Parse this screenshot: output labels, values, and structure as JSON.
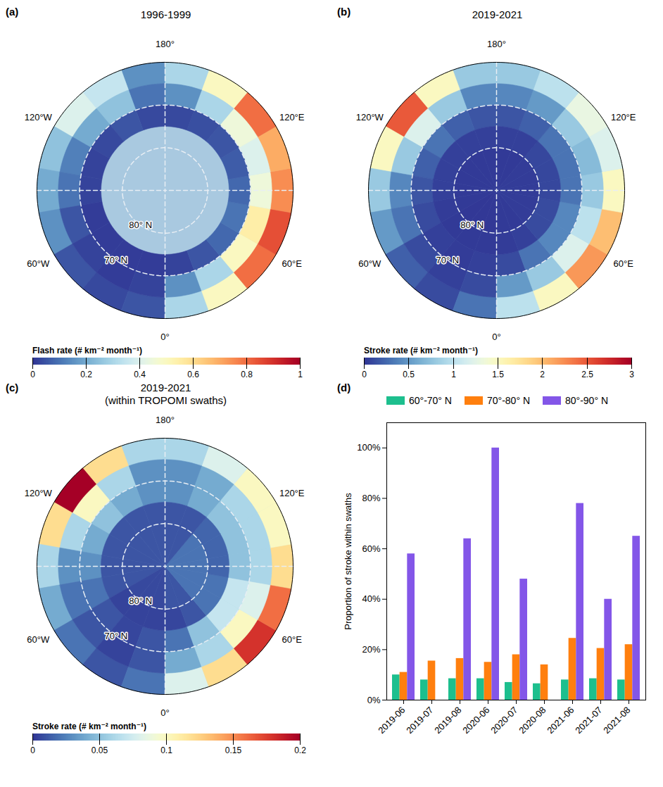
{
  "chart_data": [
    {
      "type": "map",
      "panel": "(a)",
      "title": "1996-1999",
      "lat_bands": [
        60,
        65,
        70,
        75,
        80,
        90
      ],
      "lon_edges": [
        -180,
        -160,
        -140,
        -120,
        -100,
        -80,
        -60,
        -40,
        -20,
        0,
        20,
        40,
        60,
        80,
        100,
        120,
        140,
        160,
        180
      ],
      "cells": [
        [
          0.15,
          0.1,
          0.03,
          null,
          null
        ],
        [
          0.35,
          0.25,
          0.05,
          null,
          null
        ],
        [
          0.4,
          0.2,
          0.03,
          null,
          null
        ],
        [
          0.25,
          0.12,
          0.02,
          null,
          null
        ],
        [
          0.2,
          0.1,
          0.02,
          null,
          null
        ],
        [
          0.15,
          0.05,
          0.01,
          null,
          null
        ],
        [
          0.05,
          0.02,
          0.01,
          null,
          null
        ],
        [
          0.03,
          0.01,
          0.01,
          null,
          null
        ],
        [
          0.05,
          0.02,
          0.01,
          null,
          null
        ],
        [
          0.3,
          0.15,
          0.02,
          null,
          null
        ],
        [
          0.5,
          0.3,
          0.05,
          null,
          null
        ],
        [
          0.8,
          0.5,
          0.08,
          null,
          null
        ],
        [
          0.85,
          0.55,
          0.1,
          null,
          null
        ],
        [
          0.75,
          0.45,
          0.08,
          null,
          null
        ],
        [
          0.7,
          0.4,
          0.06,
          null,
          null
        ],
        [
          0.8,
          0.45,
          0.05,
          null,
          null
        ],
        [
          0.5,
          0.3,
          0.04,
          null,
          null
        ],
        [
          0.3,
          0.15,
          0.03,
          null,
          null
        ]
      ],
      "colorbar": {
        "label": "Flash rate (# km⁻² month⁻¹)",
        "range": [
          0,
          1
        ],
        "ticks": [
          0,
          0.2,
          0.4,
          0.6,
          0.8,
          1
        ]
      },
      "lon_labels": [
        {
          "value": 180,
          "label": "180°"
        },
        {
          "value": 120,
          "label": "120°E"
        },
        {
          "value": 60,
          "label": "60°E"
        },
        {
          "value": 0,
          "label": "0°"
        },
        {
          "value": -60,
          "label": "60°W"
        },
        {
          "value": -120,
          "label": "120°W"
        }
      ],
      "lat_labels": [
        {
          "value": 80,
          "label": "80° N"
        },
        {
          "value": 70,
          "label": "70° N"
        }
      ],
      "meridians": [
        -90,
        0,
        90,
        180
      ]
    },
    {
      "type": "map",
      "panel": "(b)",
      "title": "2019-2021",
      "lat_bands": [
        60,
        65,
        70,
        75,
        80,
        90
      ],
      "lon_edges": [
        -180,
        -160,
        -140,
        -120,
        -100,
        -80,
        -60,
        -40,
        -20,
        0,
        20,
        40,
        60,
        80,
        100,
        120,
        140,
        160,
        180
      ],
      "cells": [
        [
          0.8,
          0.4,
          0.15,
          0.05,
          0.02
        ],
        [
          1.5,
          0.8,
          0.2,
          0.05,
          0.02
        ],
        [
          2.5,
          1.2,
          0.3,
          0.05,
          0.02
        ],
        [
          1.5,
          0.8,
          0.2,
          0.05,
          0.02
        ],
        [
          0.8,
          0.4,
          0.15,
          0.05,
          0.02
        ],
        [
          0.5,
          0.3,
          0.1,
          0.03,
          0.02
        ],
        [
          0.2,
          0.1,
          0.05,
          0.02,
          0.01
        ],
        [
          0.1,
          0.05,
          0.03,
          0.02,
          0.01
        ],
        [
          0.3,
          0.1,
          0.05,
          0.02,
          0.01
        ],
        [
          1.0,
          0.5,
          0.1,
          0.03,
          0.02
        ],
        [
          1.5,
          0.8,
          0.3,
          0.05,
          0.02
        ],
        [
          2.2,
          1.2,
          0.4,
          0.1,
          0.03
        ],
        [
          2.0,
          1.0,
          0.4,
          0.1,
          0.03
        ],
        [
          1.5,
          0.8,
          0.3,
          0.08,
          0.03
        ],
        [
          1.2,
          0.7,
          0.3,
          0.08,
          0.03
        ],
        [
          1.3,
          0.8,
          0.3,
          0.08,
          0.03
        ],
        [
          1.0,
          0.5,
          0.2,
          0.05,
          0.02
        ],
        [
          0.8,
          0.4,
          0.15,
          0.05,
          0.02
        ]
      ],
      "colorbar": {
        "label": "Stroke rate (# km⁻² month⁻¹)",
        "range": [
          0,
          3
        ],
        "ticks": [
          0,
          0.5,
          1,
          1.5,
          2,
          2.5,
          3
        ]
      },
      "lon_labels": [
        {
          "value": 180,
          "label": "180°"
        },
        {
          "value": 120,
          "label": "120°E"
        },
        {
          "value": 60,
          "label": "60°E"
        },
        {
          "value": 0,
          "label": "0°"
        },
        {
          "value": -60,
          "label": "60°W"
        },
        {
          "value": -120,
          "label": "120°W"
        }
      ],
      "lat_labels": [
        {
          "value": 80,
          "label": "80° N"
        },
        {
          "value": 70,
          "label": "70° N"
        }
      ],
      "meridians": [
        -90,
        0,
        90,
        180
      ]
    },
    {
      "type": "map",
      "panel": "(c)",
      "title": "2019-2021",
      "subtitle": "(within TROPOMI swaths)",
      "lat_bands": [
        60,
        65,
        70,
        75,
        80,
        90
      ],
      "lon_edges": [
        -180,
        -160,
        -140,
        -120,
        -100,
        -80,
        -60,
        -40,
        -20,
        0,
        20,
        40,
        60,
        80,
        100,
        120,
        140,
        160,
        180
      ],
      "cells": [
        [
          0.06,
          0.03,
          0.03,
          0.01,
          0.01
        ],
        [
          0.12,
          0.06,
          0.04,
          0.01,
          0.01
        ],
        [
          0.2,
          0.1,
          0.05,
          0.01,
          0.01
        ],
        [
          0.12,
          0.06,
          0.04,
          0.01,
          0.01
        ],
        [
          0.06,
          0.03,
          0.03,
          0.01,
          0.01
        ],
        [
          0.04,
          0.02,
          0.02,
          0.01,
          0.01
        ],
        [
          0.02,
          0.01,
          0.01,
          0.004,
          0.006
        ],
        [
          0.01,
          0.004,
          0.005,
          0.004,
          0.006
        ],
        [
          0.02,
          0.01,
          0.01,
          0.004,
          0.006
        ],
        [
          0.08,
          0.04,
          0.02,
          0.005,
          0.01
        ],
        [
          0.12,
          0.06,
          0.05,
          0.01,
          0.01
        ],
        [
          0.18,
          0.1,
          0.07,
          0.02,
          0.02
        ],
        [
          0.16,
          0.08,
          0.07,
          0.02,
          0.02
        ],
        [
          0.12,
          0.06,
          0.05,
          0.015,
          0.02
        ],
        [
          0.1,
          0.06,
          0.05,
          0.015,
          0.02
        ],
        [
          0.1,
          0.06,
          0.05,
          0.015,
          0.02
        ],
        [
          0.08,
          0.04,
          0.04,
          0.01,
          0.01
        ],
        [
          0.06,
          0.03,
          0.03,
          0.01,
          0.01
        ]
      ],
      "colorbar": {
        "label": "Stroke rate (# km⁻² month⁻¹)",
        "range": [
          0,
          0.2
        ],
        "ticks": [
          0,
          0.05,
          0.1,
          0.15,
          0.2
        ]
      },
      "lon_labels": [
        {
          "value": 180,
          "label": "180°"
        },
        {
          "value": 120,
          "label": "120°E"
        },
        {
          "value": 60,
          "label": "60°E"
        },
        {
          "value": 0,
          "label": "0°"
        },
        {
          "value": -60,
          "label": "60°W"
        },
        {
          "value": -120,
          "label": "120°W"
        }
      ],
      "lat_labels": [
        {
          "value": 80,
          "label": "80° N"
        },
        {
          "value": 70,
          "label": "70° N"
        }
      ],
      "meridians": [
        -90,
        0,
        90,
        180
      ]
    },
    {
      "type": "bar",
      "panel": "(d)",
      "categories": [
        "2019-06",
        "2019-07",
        "2019-08",
        "2020-06",
        "2020-07",
        "2020-08",
        "2021-06",
        "2021-07",
        "2021-08"
      ],
      "series": [
        {
          "name": "60°-70° N",
          "color": "#1dbf8e",
          "values": [
            10,
            8,
            8.5,
            8.5,
            7,
            6.5,
            8,
            8.5,
            8
          ]
        },
        {
          "name": "70°-80° N",
          "color": "#ff7f0e",
          "values": [
            11,
            15.5,
            16.5,
            15,
            18,
            14,
            24.5,
            20.5,
            22
          ]
        },
        {
          "name": "80°-90° N",
          "color": "#8356e8",
          "values": [
            58,
            null,
            64,
            100,
            48,
            null,
            78,
            40,
            65
          ]
        }
      ],
      "ylabel": "Proportion of stroke within swaths",
      "ylim": [
        0,
        110
      ],
      "yticks": [
        {
          "value": 0,
          "label": "0%"
        },
        {
          "value": 20,
          "label": "20%"
        },
        {
          "value": 40,
          "label": "40%"
        },
        {
          "value": 60,
          "label": "60%"
        },
        {
          "value": 80,
          "label": "80%"
        },
        {
          "value": 100,
          "label": "100%"
        }
      ],
      "legend": "top",
      "grid": false
    }
  ]
}
